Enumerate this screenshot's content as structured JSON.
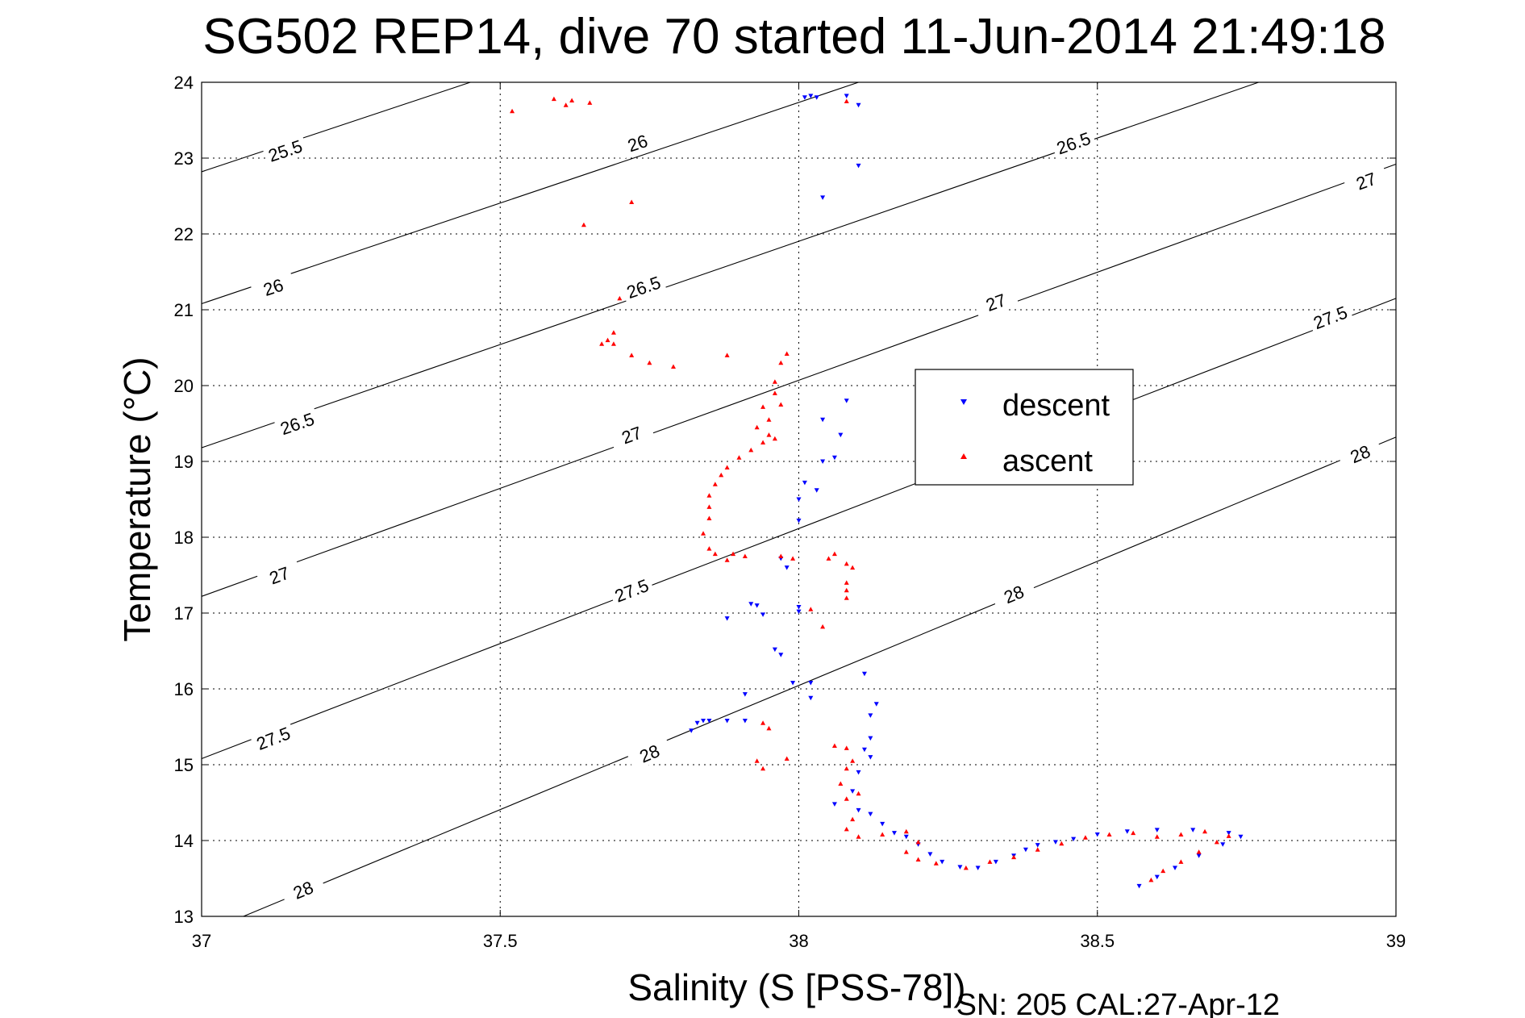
{
  "chart_data": {
    "type": "scatter",
    "title": "SG502 REP14, dive 70 started 11-Jun-2014 21:49:18",
    "xlabel": "Salinity (S [PSS-78])",
    "ylabel": "Temperature (°C)",
    "footer": "SN: 205  CAL:27-Apr-12",
    "xlim": [
      37,
      39
    ],
    "ylim": [
      13,
      24
    ],
    "x_ticks": [
      "37",
      "37.5",
      "38",
      "38.5",
      "39"
    ],
    "y_ticks": [
      "13",
      "14",
      "15",
      "16",
      "17",
      "18",
      "19",
      "20",
      "21",
      "22",
      "23",
      "24"
    ],
    "grid": true,
    "legend_position": "center-right",
    "density_contours": [
      {
        "label": "25.5",
        "points": [
          [
            37.0,
            22.82
          ],
          [
            37.45,
            24.0
          ]
        ],
        "label_at": [
          37.14,
          23.1
        ]
      },
      {
        "label": "26",
        "points": [
          [
            37.0,
            21.08
          ],
          [
            38.1,
            24.0
          ]
        ],
        "label_at": [
          37.12,
          21.3
        ]
      },
      {
        "label": "26",
        "points": [
          [
            37.0,
            21.08
          ],
          [
            38.1,
            24.0
          ]
        ],
        "label_at": [
          37.73,
          23.2
        ]
      },
      {
        "label": "26.5",
        "points": [
          [
            37.0,
            19.18
          ],
          [
            38.77,
            24.0
          ]
        ],
        "label_at": [
          37.16,
          19.5
        ]
      },
      {
        "label": "26.5",
        "points": [
          [
            37.0,
            19.18
          ],
          [
            38.77,
            24.0
          ]
        ],
        "label_at": [
          37.74,
          21.3
        ]
      },
      {
        "label": "26.5",
        "points": [
          [
            37.0,
            19.18
          ],
          [
            38.77,
            24.0
          ]
        ],
        "label_at": [
          38.46,
          23.2
        ]
      },
      {
        "label": "27",
        "points": [
          [
            37.0,
            17.22
          ],
          [
            39.0,
            22.92
          ]
        ],
        "label_at": [
          37.13,
          17.5
        ]
      },
      {
        "label": "27",
        "points": [
          [
            37.0,
            17.22
          ],
          [
            39.0,
            22.92
          ]
        ],
        "label_at": [
          37.72,
          19.35
        ]
      },
      {
        "label": "27",
        "points": [
          [
            37.0,
            17.22
          ],
          [
            39.0,
            22.92
          ]
        ],
        "label_at": [
          38.33,
          21.1
        ]
      },
      {
        "label": "27",
        "points": [
          [
            37.0,
            17.22
          ],
          [
            39.0,
            22.92
          ]
        ],
        "label_at": [
          38.95,
          22.7
        ]
      },
      {
        "label": "27.5",
        "points": [
          [
            37.0,
            15.08
          ],
          [
            39.0,
            21.15
          ]
        ],
        "label_at": [
          37.12,
          15.35
        ]
      },
      {
        "label": "27.5",
        "points": [
          [
            37.0,
            15.08
          ],
          [
            39.0,
            21.15
          ]
        ],
        "label_at": [
          37.72,
          17.3
        ]
      },
      {
        "label": "27.5",
        "points": [
          [
            37.0,
            15.08
          ],
          [
            39.0,
            21.15
          ]
        ],
        "label_at": [
          38.89,
          20.9
        ]
      },
      {
        "label": "28",
        "points": [
          [
            37.07,
            13.0
          ],
          [
            39.0,
            19.32
          ]
        ],
        "label_at": [
          37.17,
          13.35
        ]
      },
      {
        "label": "28",
        "points": [
          [
            37.07,
            13.0
          ],
          [
            39.0,
            19.32
          ]
        ],
        "label_at": [
          37.75,
          15.15
        ]
      },
      {
        "label": "28",
        "points": [
          [
            37.07,
            13.0
          ],
          [
            39.0,
            19.32
          ]
        ],
        "label_at": [
          38.36,
          17.25
        ]
      },
      {
        "label": "28",
        "points": [
          [
            37.07,
            13.0
          ],
          [
            39.0,
            19.32
          ]
        ],
        "label_at": [
          38.94,
          19.1
        ]
      }
    ],
    "series": [
      {
        "name": "descent",
        "color": "#0000ff",
        "marker": "triangle-down",
        "points": [
          [
            38.01,
            23.8
          ],
          [
            38.02,
            23.82
          ],
          [
            38.03,
            23.8
          ],
          [
            38.08,
            23.82
          ],
          [
            38.1,
            23.7
          ],
          [
            38.1,
            22.9
          ],
          [
            38.04,
            22.48
          ],
          [
            38.08,
            19.8
          ],
          [
            38.04,
            19.55
          ],
          [
            38.07,
            19.35
          ],
          [
            38.06,
            19.05
          ],
          [
            38.04,
            19.0
          ],
          [
            38.01,
            18.72
          ],
          [
            38.03,
            18.62
          ],
          [
            38.0,
            18.5
          ],
          [
            38.0,
            18.22
          ],
          [
            37.97,
            17.72
          ],
          [
            37.98,
            17.6
          ],
          [
            38.0,
            17.08
          ],
          [
            38.0,
            17.02
          ],
          [
            37.93,
            17.1
          ],
          [
            37.92,
            17.12
          ],
          [
            37.94,
            16.98
          ],
          [
            37.88,
            16.93
          ],
          [
            37.96,
            16.52
          ],
          [
            37.97,
            16.45
          ],
          [
            38.02,
            16.08
          ],
          [
            37.99,
            16.08
          ],
          [
            38.02,
            15.88
          ],
          [
            37.91,
            15.93
          ],
          [
            38.11,
            16.2
          ],
          [
            38.13,
            15.8
          ],
          [
            38.12,
            15.65
          ],
          [
            37.85,
            15.58
          ],
          [
            37.84,
            15.58
          ],
          [
            37.83,
            15.55
          ],
          [
            37.88,
            15.58
          ],
          [
            37.91,
            15.58
          ],
          [
            37.82,
            15.45
          ],
          [
            38.12,
            15.35
          ],
          [
            38.11,
            15.2
          ],
          [
            38.12,
            15.1
          ],
          [
            38.1,
            14.9
          ],
          [
            38.09,
            14.65
          ],
          [
            38.06,
            14.48
          ],
          [
            38.1,
            14.4
          ],
          [
            38.12,
            14.35
          ],
          [
            38.14,
            14.22
          ],
          [
            38.16,
            14.1
          ],
          [
            38.18,
            14.05
          ],
          [
            38.2,
            13.95
          ],
          [
            38.22,
            13.82
          ],
          [
            38.24,
            13.72
          ],
          [
            38.27,
            13.65
          ],
          [
            38.3,
            13.64
          ],
          [
            38.33,
            13.72
          ],
          [
            38.36,
            13.8
          ],
          [
            38.38,
            13.88
          ],
          [
            38.4,
            13.94
          ],
          [
            38.43,
            13.98
          ],
          [
            38.46,
            14.02
          ],
          [
            38.5,
            14.08
          ],
          [
            38.55,
            14.12
          ],
          [
            38.6,
            14.14
          ],
          [
            38.66,
            14.14
          ],
          [
            38.72,
            14.1
          ],
          [
            38.74,
            14.05
          ],
          [
            38.71,
            13.95
          ],
          [
            38.67,
            13.8
          ],
          [
            38.63,
            13.64
          ],
          [
            38.6,
            13.52
          ],
          [
            38.57,
            13.4
          ]
        ]
      },
      {
        "name": "ascent",
        "color": "#ff0000",
        "marker": "triangle-up",
        "points": [
          [
            37.52,
            23.62
          ],
          [
            37.59,
            23.78
          ],
          [
            37.61,
            23.7
          ],
          [
            37.62,
            23.76
          ],
          [
            37.65,
            23.73
          ],
          [
            38.08,
            23.75
          ],
          [
            37.64,
            22.12
          ],
          [
            37.72,
            22.42
          ],
          [
            37.7,
            21.15
          ],
          [
            37.67,
            20.55
          ],
          [
            37.68,
            20.6
          ],
          [
            37.69,
            20.7
          ],
          [
            37.69,
            20.55
          ],
          [
            37.72,
            20.4
          ],
          [
            37.75,
            20.3
          ],
          [
            37.79,
            20.25
          ],
          [
            37.88,
            20.4
          ],
          [
            37.98,
            20.42
          ],
          [
            37.97,
            20.3
          ],
          [
            37.96,
            20.05
          ],
          [
            37.96,
            19.9
          ],
          [
            37.97,
            19.75
          ],
          [
            37.94,
            19.72
          ],
          [
            37.95,
            19.55
          ],
          [
            37.93,
            19.45
          ],
          [
            37.95,
            19.35
          ],
          [
            37.96,
            19.3
          ],
          [
            37.94,
            19.25
          ],
          [
            37.92,
            19.15
          ],
          [
            37.9,
            19.05
          ],
          [
            37.88,
            18.92
          ],
          [
            37.87,
            18.82
          ],
          [
            37.86,
            18.7
          ],
          [
            37.85,
            18.55
          ],
          [
            37.85,
            18.4
          ],
          [
            37.85,
            18.25
          ],
          [
            37.84,
            18.05
          ],
          [
            37.85,
            17.85
          ],
          [
            37.86,
            17.78
          ],
          [
            37.88,
            17.7
          ],
          [
            37.89,
            17.78
          ],
          [
            37.91,
            17.75
          ],
          [
            37.97,
            17.75
          ],
          [
            37.99,
            17.72
          ],
          [
            38.02,
            17.05
          ],
          [
            38.04,
            16.82
          ],
          [
            38.05,
            17.72
          ],
          [
            38.06,
            17.78
          ],
          [
            38.08,
            17.65
          ],
          [
            38.09,
            17.6
          ],
          [
            38.08,
            17.4
          ],
          [
            38.08,
            17.3
          ],
          [
            38.08,
            17.2
          ],
          [
            37.94,
            15.55
          ],
          [
            37.95,
            15.48
          ],
          [
            37.93,
            15.05
          ],
          [
            37.94,
            14.95
          ],
          [
            37.98,
            15.08
          ],
          [
            38.06,
            15.25
          ],
          [
            38.08,
            15.22
          ],
          [
            38.09,
            15.05
          ],
          [
            38.08,
            14.95
          ],
          [
            38.07,
            14.75
          ],
          [
            38.08,
            14.55
          ],
          [
            38.1,
            14.62
          ],
          [
            38.09,
            14.28
          ],
          [
            38.08,
            14.15
          ],
          [
            38.1,
            14.05
          ],
          [
            38.14,
            14.08
          ],
          [
            38.18,
            14.12
          ],
          [
            38.2,
            13.98
          ],
          [
            38.18,
            13.85
          ],
          [
            38.2,
            13.75
          ],
          [
            38.23,
            13.7
          ],
          [
            38.28,
            13.64
          ],
          [
            38.32,
            13.72
          ],
          [
            38.36,
            13.78
          ],
          [
            38.4,
            13.88
          ],
          [
            38.44,
            13.96
          ],
          [
            38.48,
            14.04
          ],
          [
            38.52,
            14.08
          ],
          [
            38.56,
            14.1
          ],
          [
            38.6,
            14.05
          ],
          [
            38.64,
            14.08
          ],
          [
            38.68,
            14.12
          ],
          [
            38.72,
            14.06
          ],
          [
            38.7,
            13.98
          ],
          [
            38.67,
            13.85
          ],
          [
            38.64,
            13.72
          ],
          [
            38.61,
            13.6
          ],
          [
            38.59,
            13.48
          ]
        ]
      }
    ]
  }
}
